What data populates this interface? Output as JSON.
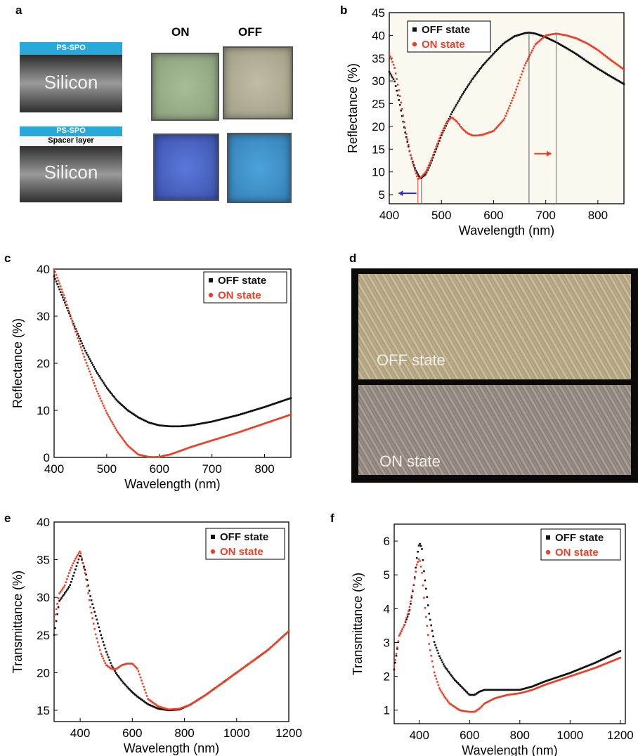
{
  "panels": {
    "a": "a",
    "b": "b",
    "c": "c",
    "d": "d",
    "e": "e",
    "f": "f"
  },
  "panel_a": {
    "top_stack": {
      "coating": "PS-SPO",
      "substrate": "Silicon"
    },
    "bottom_stack": {
      "coating": "PS-SPO",
      "spacer": "Spacer layer",
      "substrate": "Silicon"
    },
    "col_on": "ON",
    "col_off": "OFF",
    "colors": {
      "coating": "#29a9d9",
      "silicon_dark": "#3a3a3a",
      "silicon_light": "#9a9a9a",
      "sample_top_on": "#9fb58e",
      "sample_top_off": "#b7b49a",
      "sample_bottom_on": "#4a64c8",
      "sample_bottom_off": "#3c94cd"
    }
  },
  "panel_d": {
    "off_label": "OFF state",
    "on_label": "ON state",
    "colors": {
      "off_surface": "#b6a887",
      "on_surface": "#9a8e85"
    }
  },
  "legend": {
    "off": "OFF state",
    "on": "ON state"
  },
  "series_colors": {
    "off": "#111111",
    "on": "#e8412a"
  },
  "chart_data": [
    {
      "id": "b",
      "type": "scatter",
      "xlabel": "Wavelength (nm)",
      "ylabel": "Reflectance (%)",
      "xlim": [
        400,
        850
      ],
      "ylim": [
        3,
        45
      ],
      "xticks": [
        400,
        500,
        600,
        700,
        800
      ],
      "yticks": [
        5,
        10,
        15,
        20,
        25,
        30,
        35,
        40,
        45
      ],
      "legend_position": "top-left",
      "series": [
        {
          "name": "OFF state",
          "color": "#111111",
          "x": [
            400,
            410,
            420,
            430,
            440,
            450,
            460,
            470,
            480,
            490,
            500,
            520,
            540,
            560,
            580,
            600,
            620,
            640,
            660,
            668,
            680,
            700,
            720,
            740,
            760,
            780,
            800,
            820,
            850
          ],
          "y": [
            32,
            30,
            25,
            19,
            14,
            10.5,
            8.5,
            9.5,
            12,
            15,
            18,
            23,
            27,
            30.5,
            33.5,
            36,
            38.3,
            39.8,
            40.5,
            40.6,
            40.4,
            39.6,
            38.5,
            37.2,
            35.8,
            34.2,
            32.7,
            31.3,
            29.3
          ]
        },
        {
          "name": "ON state",
          "color": "#e8412a",
          "x": [
            400,
            410,
            420,
            430,
            440,
            450,
            455,
            460,
            470,
            480,
            490,
            500,
            510,
            520,
            530,
            540,
            550,
            560,
            570,
            580,
            600,
            620,
            640,
            660,
            680,
            700,
            720,
            740,
            760,
            780,
            800,
            820,
            850
          ],
          "y": [
            36,
            33,
            27,
            20,
            14,
            10,
            8.5,
            8.7,
            10,
            12.5,
            15.5,
            18.5,
            21,
            22,
            21,
            19.5,
            18.5,
            18,
            18,
            18.2,
            19,
            21.5,
            27,
            33.5,
            38,
            40,
            40.4,
            40,
            39.3,
            38.2,
            36.8,
            35,
            32.5
          ]
        }
      ]
    },
    {
      "id": "c",
      "type": "scatter",
      "xlabel": "Wavelength (nm)",
      "ylabel": "Reflectance (%)",
      "xlim": [
        400,
        850
      ],
      "ylim": [
        0,
        40
      ],
      "xticks": [
        400,
        500,
        600,
        700,
        800
      ],
      "yticks": [
        0,
        10,
        20,
        30,
        40
      ],
      "legend_position": "top-right",
      "series": [
        {
          "name": "OFF state",
          "color": "#111111",
          "x": [
            400,
            420,
            440,
            460,
            480,
            500,
            520,
            540,
            560,
            580,
            600,
            620,
            640,
            660,
            700,
            750,
            800,
            850
          ],
          "y": [
            38.5,
            33,
            27.5,
            22.5,
            18.3,
            14.8,
            12,
            10,
            8.5,
            7.4,
            6.8,
            6.6,
            6.6,
            6.8,
            7.6,
            9,
            10.7,
            12.6
          ]
        },
        {
          "name": "ON state",
          "color": "#e8412a",
          "x": [
            400,
            420,
            440,
            460,
            480,
            500,
            520,
            540,
            560,
            580,
            590,
            600,
            610,
            620,
            640,
            660,
            700,
            750,
            800,
            850
          ],
          "y": [
            40,
            34,
            27,
            20.5,
            14.5,
            9.5,
            5.5,
            2.5,
            0.6,
            0.1,
            0.05,
            0.1,
            0.4,
            0.6,
            1.4,
            2.2,
            3.6,
            5.3,
            7.2,
            9.1
          ]
        }
      ]
    },
    {
      "id": "e",
      "type": "scatter",
      "xlabel": "Wavelength (nm)",
      "ylabel": "Transmittance (%)",
      "xlim": [
        300,
        1200
      ],
      "ylim": [
        13.5,
        40
      ],
      "xticks": [
        400,
        600,
        800,
        1000,
        1200
      ],
      "yticks": [
        15,
        20,
        25,
        30,
        35,
        40
      ],
      "legend_position": "top-right",
      "series": [
        {
          "name": "OFF state",
          "color": "#111111",
          "x": [
            300,
            320,
            340,
            360,
            380,
            400,
            420,
            440,
            460,
            480,
            500,
            520,
            540,
            560,
            580,
            600,
            620,
            660,
            700,
            740,
            780,
            820,
            880,
            960,
            1040,
            1120,
            1200
          ],
          "y": [
            25,
            29.5,
            30.5,
            31.5,
            33.5,
            35.7,
            33.5,
            30,
            27.5,
            25,
            22.8,
            21,
            19.8,
            18.9,
            18.1,
            17.4,
            16.8,
            15.8,
            15.2,
            15,
            15.1,
            15.7,
            17,
            19,
            21,
            23,
            25.5
          ]
        },
        {
          "name": "ON state",
          "color": "#e8412a",
          "x": [
            300,
            320,
            340,
            360,
            380,
            400,
            420,
            440,
            460,
            480,
            500,
            520,
            540,
            560,
            580,
            600,
            620,
            640,
            660,
            700,
            740,
            780,
            820,
            880,
            960,
            1040,
            1120,
            1200
          ],
          "y": [
            27,
            30.5,
            31.5,
            33.5,
            35,
            36.2,
            33,
            28.5,
            25,
            22.5,
            21,
            20.5,
            20.5,
            21,
            21.2,
            21.2,
            20.5,
            18.5,
            16.5,
            15.5,
            15.1,
            15.2,
            15.7,
            17,
            19,
            21,
            23,
            25.5
          ]
        }
      ]
    },
    {
      "id": "f",
      "type": "scatter",
      "xlabel": "Wavelength (nm)",
      "ylabel": "Transmittance (%)",
      "xlim": [
        300,
        1220
      ],
      "ylim": [
        0.6,
        6.5
      ],
      "xticks": [
        400,
        600,
        800,
        1000,
        1200
      ],
      "yticks": [
        1,
        2,
        3,
        4,
        5,
        6
      ],
      "legend_position": "top-right",
      "series": [
        {
          "name": "OFF state",
          "color": "#111111",
          "x": [
            300,
            320,
            340,
            360,
            380,
            390,
            400,
            410,
            420,
            440,
            460,
            480,
            500,
            520,
            540,
            560,
            580,
            600,
            620,
            640,
            660,
            700,
            750,
            800,
            850,
            900,
            1000,
            1100,
            1200
          ],
          "y": [
            2.2,
            3.2,
            3.5,
            3.9,
            4.8,
            5.5,
            5.95,
            5.8,
            5,
            3.8,
            3,
            2.6,
            2.3,
            2.1,
            1.9,
            1.75,
            1.6,
            1.45,
            1.45,
            1.55,
            1.6,
            1.6,
            1.6,
            1.6,
            1.7,
            1.85,
            2.1,
            2.4,
            2.75
          ]
        },
        {
          "name": "ON state",
          "color": "#e8412a",
          "x": [
            300,
            320,
            340,
            360,
            380,
            390,
            400,
            410,
            420,
            440,
            460,
            480,
            500,
            520,
            540,
            560,
            580,
            600,
            620,
            640,
            660,
            700,
            750,
            800,
            850,
            900,
            1000,
            1100,
            1200
          ],
          "y": [
            2.3,
            3.2,
            3.5,
            4,
            4.8,
            5.3,
            5.5,
            5.1,
            4.2,
            2.9,
            2.1,
            1.65,
            1.4,
            1.2,
            1.1,
            1.0,
            0.97,
            0.95,
            0.95,
            1.05,
            1.2,
            1.35,
            1.45,
            1.5,
            1.6,
            1.75,
            2.0,
            2.25,
            2.55
          ]
        }
      ]
    }
  ]
}
